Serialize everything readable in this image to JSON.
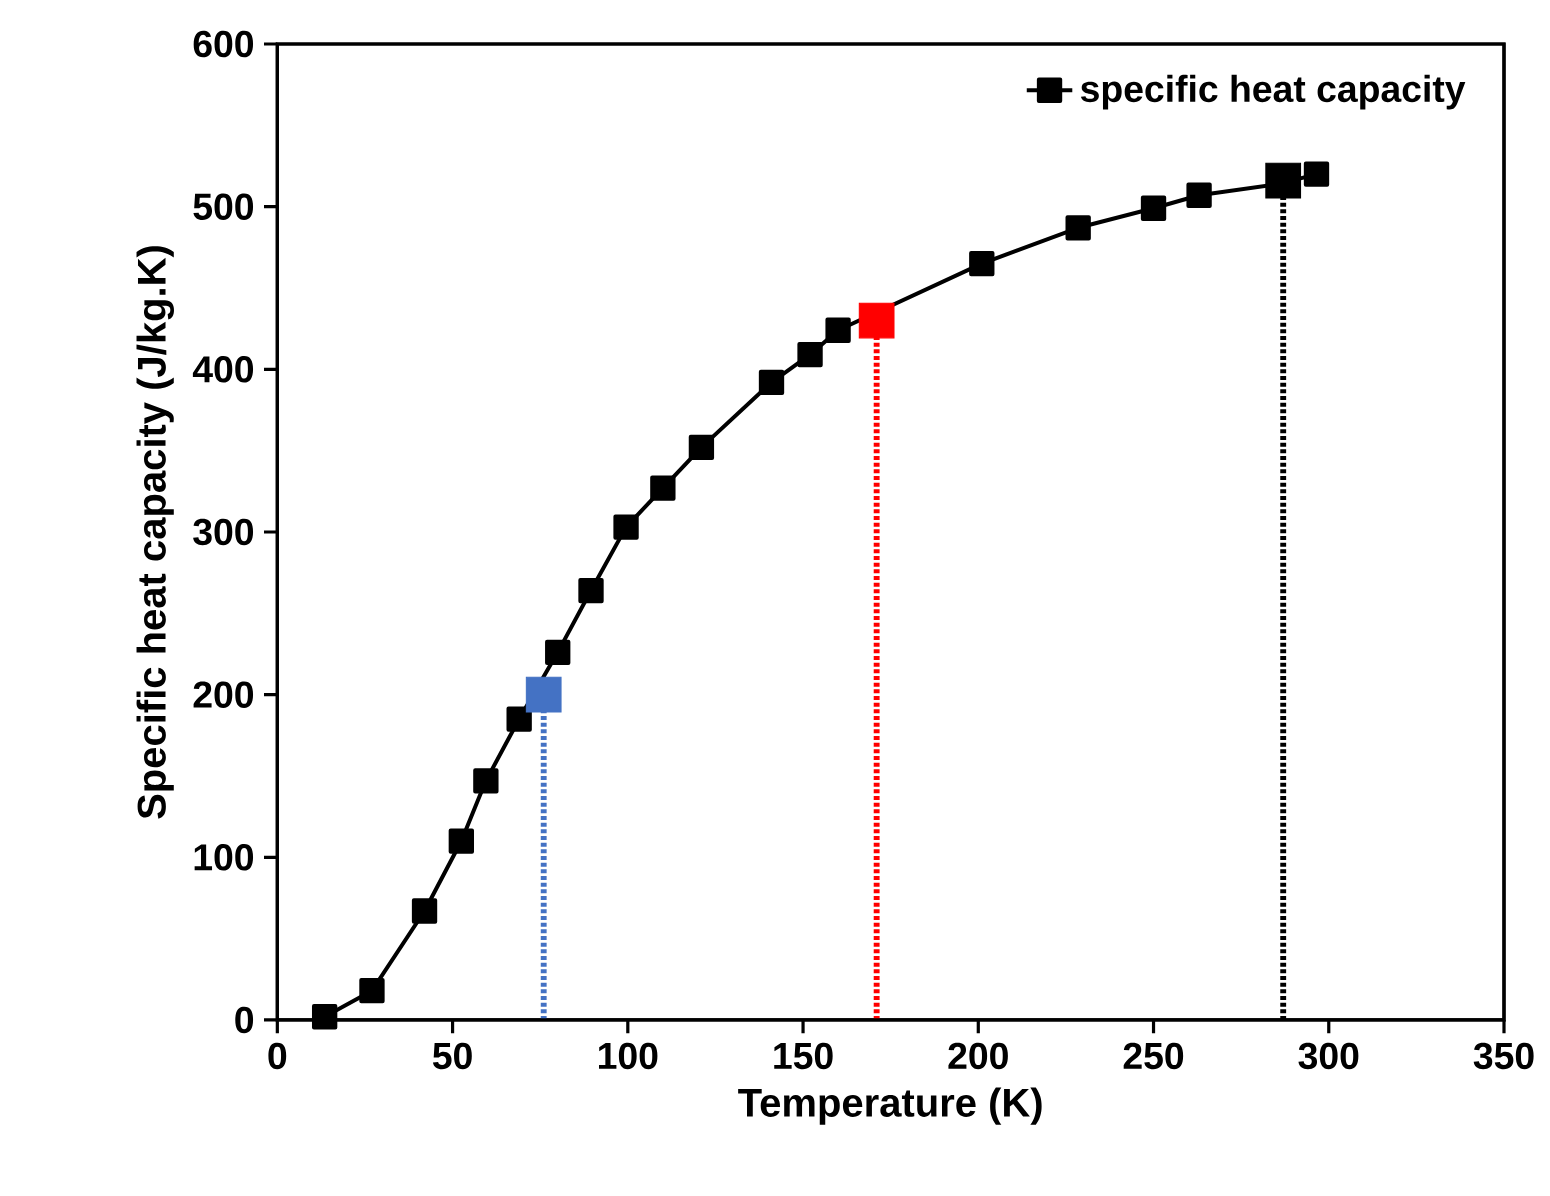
{
  "chart_data": {
    "type": "line",
    "xlabel": "Temperature (K)",
    "ylabel": "Specific heat capacity (J/kg.K)",
    "xlim": [
      0,
      350
    ],
    "ylim": [
      0,
      600
    ],
    "xticks": [
      0,
      50,
      100,
      150,
      200,
      250,
      300,
      350
    ],
    "yticks": [
      0,
      100,
      200,
      300,
      400,
      500,
      600
    ],
    "legend": "top right",
    "grid": false,
    "series": [
      {
        "name": "specific heat capacity",
        "color": "#000000",
        "marker": "square",
        "line_style": "solid",
        "x": [
          13.5,
          27,
          42,
          52.5,
          59.5,
          69,
          80,
          89.5,
          99.5,
          110,
          121,
          141,
          152,
          160,
          201,
          228.5,
          250,
          263,
          286,
          296.5
        ],
        "values": [
          2,
          18,
          67,
          110,
          147,
          185,
          226,
          264,
          303,
          327,
          352,
          392,
          409,
          424,
          465,
          487,
          499,
          507,
          514,
          520
        ]
      },
      {
        "type": "line",
        "color": "#4472c4",
        "marker": "none",
        "line_style": "dotted",
        "x": [
          76,
          76
        ],
        "values": [
          0,
          200
        ]
      },
      {
        "type": "line",
        "color": "#ff0000",
        "marker": "none",
        "line_style": "dotted",
        "x": [
          171,
          171
        ],
        "values": [
          0,
          430
        ]
      },
      {
        "type": "line",
        "color": "#000000",
        "marker": "none",
        "line_style": "dotted",
        "x": [
          287,
          287
        ],
        "values": [
          0,
          516
        ]
      },
      {
        "type": "scatter",
        "color": "#4472c4",
        "marker": "square",
        "x": [
          76
        ],
        "values": [
          200
        ]
      },
      {
        "type": "scatter",
        "color": "#ff0000",
        "marker": "square",
        "x": [
          171
        ],
        "values": [
          430
        ]
      },
      {
        "type": "scatter",
        "color": "#000000",
        "marker": "square",
        "x": [
          287
        ],
        "values": [
          516
        ]
      }
    ]
  }
}
